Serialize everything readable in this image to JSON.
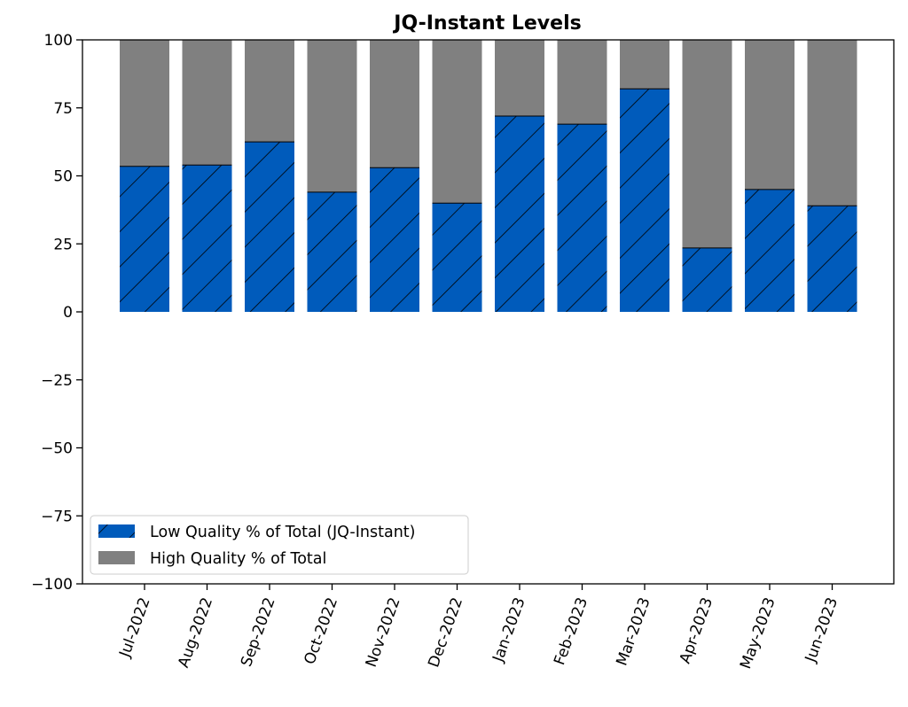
{
  "chart_data": {
    "type": "bar",
    "stacked": true,
    "title": "JQ-Instant Levels",
    "xlabel": "",
    "ylabel": "",
    "ylim": [
      -100,
      100
    ],
    "yticks": [
      100,
      75,
      50,
      25,
      0,
      -25,
      -50,
      -75,
      -100
    ],
    "ytick_labels": [
      "100",
      "75",
      "50",
      "25",
      "0",
      "−25",
      "−50",
      "−75",
      "−100"
    ],
    "categories": [
      "Jul-2022",
      "Aug-2022",
      "Sep-2022",
      "Oct-2022",
      "Nov-2022",
      "Dec-2022",
      "Jan-2023",
      "Feb-2023",
      "Mar-2023",
      "Apr-2023",
      "May-2023",
      "Jun-2023"
    ],
    "series": [
      {
        "name": "Low Quality % of Total (JQ-Instant)",
        "color": "#005bbb",
        "hatch": "diagonal",
        "values": [
          53.5,
          54,
          62.5,
          44,
          53,
          40,
          72,
          69,
          82,
          23.5,
          45,
          39
        ]
      },
      {
        "name": "High Quality % of Total",
        "color": "#808080",
        "values": [
          46.5,
          46,
          37.5,
          56,
          47,
          60,
          28,
          31,
          18,
          76.5,
          55,
          61
        ]
      }
    ],
    "legend_position": "lower-left",
    "grid": false
  }
}
